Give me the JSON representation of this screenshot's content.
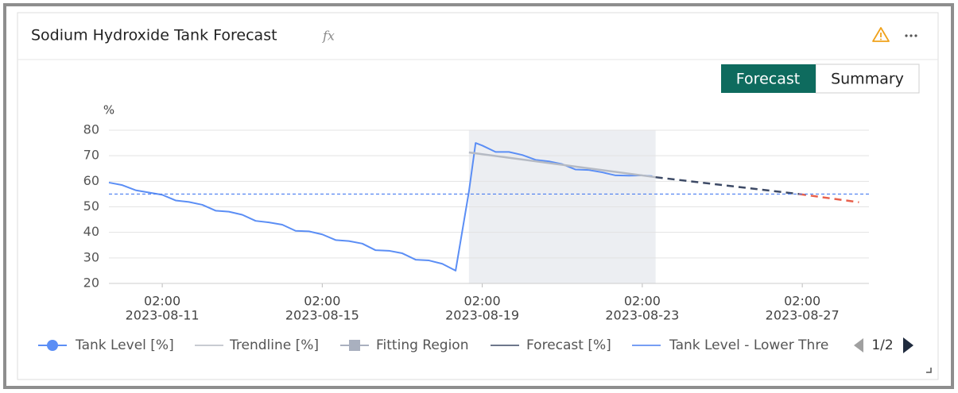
{
  "header": {
    "title": "Sodium Hydroxide Tank Forecast",
    "formula_icon": "fx"
  },
  "view_tabs": [
    "Forecast",
    "Summary"
  ],
  "chart_data": {
    "type": "line",
    "y_label": "%",
    "ylim": [
      20,
      80
    ],
    "yticks": [
      20,
      30,
      40,
      50,
      60,
      70,
      80
    ],
    "grid": true,
    "xlim": [
      "2023-08-09 18:00",
      "2023-08-28 18:00"
    ],
    "xticks": [
      {
        "value": "2023-08-11 02:00",
        "label": [
          "02:00",
          "2023-08-11"
        ]
      },
      {
        "value": "2023-08-15 02:00",
        "label": [
          "02:00",
          "2023-08-15"
        ]
      },
      {
        "value": "2023-08-19 02:00",
        "label": [
          "02:00",
          "2023-08-19"
        ]
      },
      {
        "value": "2023-08-23 02:00",
        "label": [
          "02:00",
          "2023-08-23"
        ]
      },
      {
        "value": "2023-08-27 02:00",
        "label": [
          "02:00",
          "2023-08-27"
        ]
      }
    ],
    "fitting_region": {
      "name": "Fitting Region",
      "color": "#eceef2",
      "legend_color": "#a9b0bf",
      "x": [
        "2023-08-18 18:00",
        "2023-08-23 10:00"
      ]
    },
    "series": [
      {
        "name": "Tank Level [%]",
        "color": "#5b8ef5",
        "style": "solid",
        "width": 2,
        "x": [
          "2023-08-09 18:00",
          "2023-08-10 02:00",
          "2023-08-10 10:00",
          "2023-08-10 18:00",
          "2023-08-11 02:00",
          "2023-08-11 10:00",
          "2023-08-11 18:00",
          "2023-08-12 02:00",
          "2023-08-12 10:00",
          "2023-08-12 18:00",
          "2023-08-13 02:00",
          "2023-08-13 10:00",
          "2023-08-13 18:00",
          "2023-08-14 02:00",
          "2023-08-14 10:00",
          "2023-08-14 18:00",
          "2023-08-15 02:00",
          "2023-08-15 10:00",
          "2023-08-15 18:00",
          "2023-08-16 02:00",
          "2023-08-16 10:00",
          "2023-08-16 18:00",
          "2023-08-17 02:00",
          "2023-08-17 10:00",
          "2023-08-17 18:00",
          "2023-08-18 02:00",
          "2023-08-18 10:00",
          "2023-08-18 18:00",
          "2023-08-18 22:00",
          "2023-08-19 02:00",
          "2023-08-19 10:00",
          "2023-08-19 18:00",
          "2023-08-20 02:00",
          "2023-08-20 10:00",
          "2023-08-20 18:00",
          "2023-08-21 02:00",
          "2023-08-21 10:00",
          "2023-08-21 18:00",
          "2023-08-22 02:00",
          "2023-08-22 10:00",
          "2023-08-22 18:00",
          "2023-08-23 02:00",
          "2023-08-23 08:00"
        ],
        "values": [
          59.5,
          58.5,
          56.5,
          55.6,
          54.7,
          52.5,
          51.9,
          50.8,
          48.5,
          48.1,
          46.9,
          44.5,
          43.9,
          43,
          40.6,
          40.4,
          39.2,
          37,
          36.6,
          35.6,
          33,
          32.8,
          31.8,
          29.3,
          29,
          27.7,
          25,
          56,
          75,
          74,
          71.5,
          71.5,
          70.3,
          68.4,
          67.8,
          66.7,
          64.6,
          64.4,
          63.5,
          62.3,
          62.2,
          62.3,
          62
        ]
      },
      {
        "name": "Trendline [%]",
        "color": "#b5bac4",
        "style": "solid",
        "width": 2.5,
        "x": [
          "2023-08-18 18:00",
          "2023-08-23 10:00"
        ],
        "values": [
          71.3,
          61.6
        ]
      },
      {
        "name": "Forecast [%]",
        "color": "#3d4a66",
        "style": "dashed",
        "width": 2.5,
        "below_color": "#e8604c",
        "x": [
          "2023-08-23 10:00",
          "2023-08-27 00:00",
          "2023-08-28 12:00"
        ],
        "values": [
          61.6,
          55,
          51.8
        ]
      },
      {
        "name": "Tank Level - Lower Thre",
        "color": "#4a7ef0",
        "style": "threshold",
        "width": 1.2,
        "x": [
          "2023-08-09 18:00",
          "2023-08-28 18:00"
        ],
        "values": [
          55,
          55
        ]
      }
    ],
    "legend_page": "1/2"
  }
}
